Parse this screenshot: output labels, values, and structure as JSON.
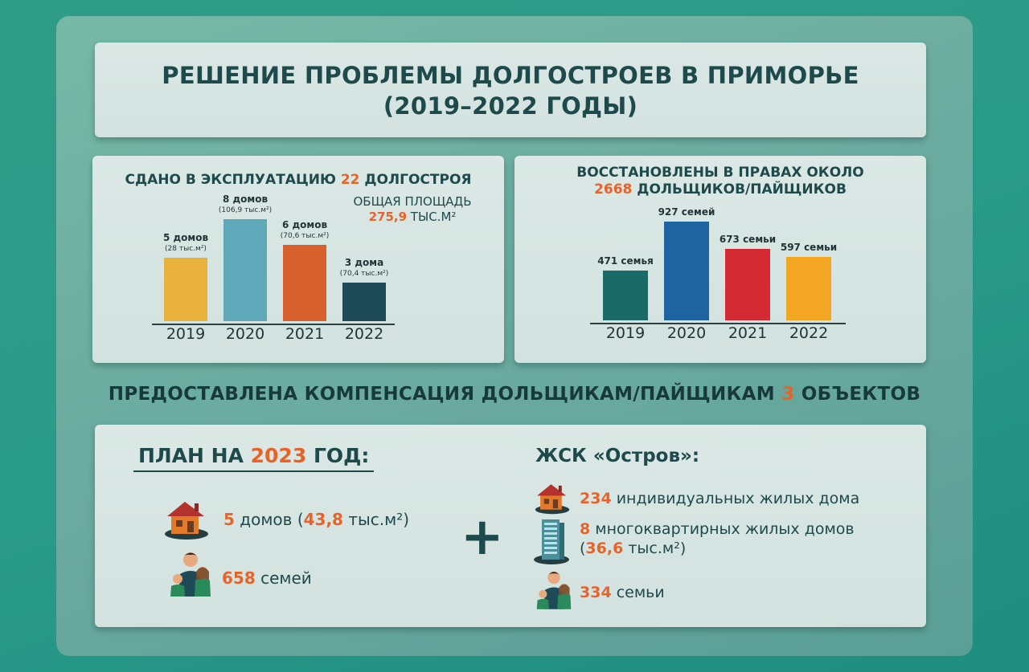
{
  "title": {
    "line1": "РЕШЕНИЕ ПРОБЛЕМЫ ДОЛГОСТРОЕВ В ПРИМОРЬЕ",
    "line2": "(2019–2022 ГОДЫ)"
  },
  "left_head": {
    "pre": "СДАНО В ЭКСПЛУАТАЦИЮ ",
    "num": "22",
    "post": " ДОЛГОСТРОЯ"
  },
  "area_note": {
    "line1": "ОБЩАЯ ПЛОЩАДЬ",
    "value": "275,9",
    "unit": " ТЫС.М²"
  },
  "right_head": {
    "line1": "ВОССТАНОВЛЕНЫ В ПРАВАХ ОКОЛО",
    "num": "2668",
    "post": " ДОЛЬЩИКОВ/ПАЙЩИКОВ"
  },
  "comp": {
    "pre": "ПРЕДОСТАВЛЕНА КОМПЕНСАЦИЯ ДОЛЬЩИКАМ/ПАЙЩИКАМ ",
    "num": "3",
    "post": " ОБЪЕКТОВ"
  },
  "plan": {
    "title_pre": "ПЛАН НА ",
    "title_year": "2023",
    "title_post": " ГОД:",
    "houses_num": "5",
    "houses_text": " домов (",
    "houses_area": "43,8",
    "houses_unit": " тыс.м²)",
    "families_num": "658",
    "families_text": " семей"
  },
  "zhsk": {
    "title": "ЖСК «Остров»:",
    "ind_num": "234",
    "ind_text": " индивидуальных жилых дома",
    "multi_num": "8",
    "multi_text": " многоквартирных жилых домов",
    "multi_paren_open": "(",
    "multi_area": "36,6",
    "multi_unit": " тыс.м²)",
    "fam_num": "334",
    "fam_text": " семьи"
  },
  "plus_sign": "+",
  "colors": {
    "orange": "#e8632a",
    "text_dark": "#1f4a4c",
    "left_bars": [
      "#e8b23c",
      "#5fa8b9",
      "#d8612f",
      "#1f4a57"
    ],
    "right_bars": [
      "#1a6b68",
      "#1f63a1",
      "#d42a34",
      "#f2a623"
    ]
  },
  "chart_data": [
    {
      "type": "bar",
      "title": "СДАНО В ЭКСПЛУАТАЦИЮ 22 ДОЛГОСТРОЯ",
      "categories": [
        "2019",
        "2020",
        "2021",
        "2022"
      ],
      "values": [
        28,
        106.9,
        70.6,
        70.4
      ],
      "houses": [
        5,
        8,
        6,
        3
      ],
      "labels": [
        "5 домов",
        "8 домов",
        "6 домов",
        "3 дома"
      ],
      "sublabels": [
        "(28 тыс.м²)",
        "(106,9 тыс.м²)",
        "(70,6 тыс.м²)",
        "(70,4 тыс.м²)"
      ],
      "ylim": [
        0,
        8
      ]
    },
    {
      "type": "bar",
      "title": "ВОССТАНОВЛЕНЫ В ПРАВАХ ОКОЛО 2668 ДОЛЬЩИКОВ/ПАЙЩИКОВ",
      "categories": [
        "2019",
        "2020",
        "2021",
        "2022"
      ],
      "values": [
        471,
        927,
        673,
        597
      ],
      "labels": [
        "471 семья",
        "927 семей",
        "673 семьи",
        "597 семьи"
      ],
      "ylim": [
        0,
        927
      ]
    }
  ]
}
